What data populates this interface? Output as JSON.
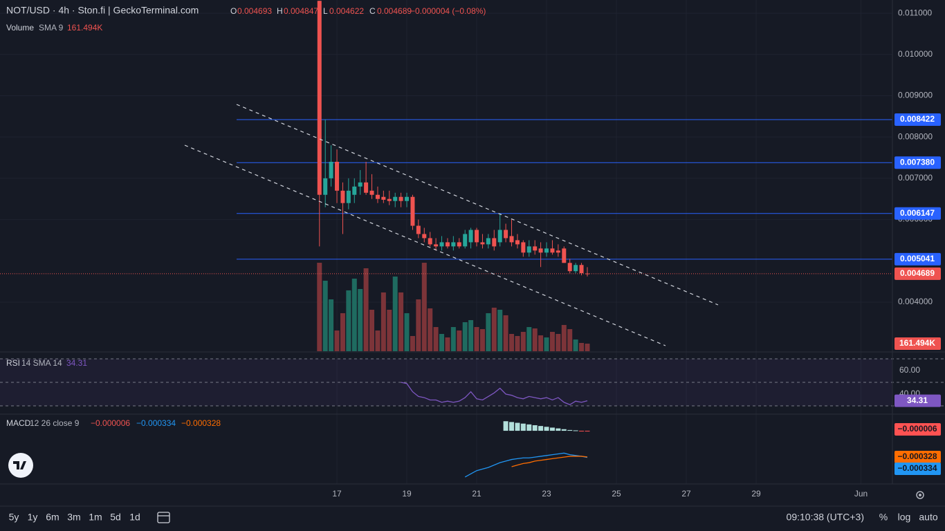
{
  "chart_data": {
    "type": "candlestick",
    "title": "NOT/USD · 4h · Ston.fi | GeckoTerminal.com",
    "ohlc_header": {
      "o_label": "O",
      "h_label": "H",
      "l_label": "L",
      "c_label": "C",
      "open": 0.004693,
      "high": 0.004847,
      "low": 0.004622,
      "close": 0.004689,
      "change": "−0.000004 (−0.08%)"
    },
    "colors": {
      "up": "#26a69a",
      "down": "#ef5350",
      "volume_up": "#1f6b60",
      "volume_down": "#7c3439",
      "level": "#2962ff",
      "rsi": "#7e57c2",
      "macd": "#2196f3",
      "signal": "#ff6d00",
      "hist_pos": "#b2dfdb",
      "hist_neg": "#ff5252"
    },
    "x": [
      16.5,
      16.667,
      16.833,
      17,
      17.167,
      17.333,
      17.5,
      17.667,
      17.833,
      18,
      18.167,
      18.333,
      18.5,
      18.667,
      18.833,
      19,
      19.167,
      19.333,
      19.5,
      19.667,
      19.833,
      20,
      20.167,
      20.333,
      20.5,
      20.667,
      20.833,
      21,
      21.167,
      21.333,
      21.5,
      21.667,
      21.833,
      22,
      22.167,
      22.333,
      22.5,
      22.667,
      22.833,
      23,
      23.167,
      23.333,
      23.5,
      23.667,
      23.833,
      24,
      24.167
    ],
    "open": [
      0.0113,
      0.0066,
      0.007,
      0.0074,
      0.0067,
      0.0064,
      0.0066,
      0.0068,
      0.0069,
      0.0067,
      0.0066,
      0.00655,
      0.0065,
      0.00645,
      0.00655,
      0.00645,
      0.00655,
      0.00585,
      0.00565,
      0.00555,
      0.0054,
      0.00535,
      0.00545,
      0.00535,
      0.00545,
      0.00535,
      0.00545,
      0.00575,
      0.00545,
      0.0054,
      0.00555,
      0.00545,
      0.00575,
      0.0056,
      0.0055,
      0.00545,
      0.0052,
      0.00535,
      0.0053,
      0.0052,
      0.0053,
      0.00525,
      0.0053,
      0.00495,
      0.00475,
      0.0049,
      0.004693
    ],
    "high": [
      0.0113,
      0.00843,
      0.0078,
      0.0077,
      0.0069,
      0.007,
      0.007,
      0.0072,
      0.0074,
      0.0071,
      0.0068,
      0.0067,
      0.0067,
      0.00665,
      0.00665,
      0.00665,
      0.0066,
      0.006,
      0.0058,
      0.0057,
      0.00555,
      0.0056,
      0.00555,
      0.0056,
      0.00555,
      0.00575,
      0.0058,
      0.0058,
      0.00565,
      0.00565,
      0.00575,
      0.00615,
      0.0059,
      0.006,
      0.00565,
      0.0055,
      0.0055,
      0.0055,
      0.00545,
      0.00545,
      0.0055,
      0.0054,
      0.00535,
      0.00505,
      0.00495,
      0.00495,
      0.004847
    ],
    "low": [
      0.00535,
      0.0063,
      0.0068,
      0.0064,
      0.00565,
      0.00625,
      0.0064,
      0.0066,
      0.0066,
      0.0065,
      0.0064,
      0.0064,
      0.00635,
      0.0063,
      0.0063,
      0.0063,
      0.00575,
      0.00555,
      0.00545,
      0.00535,
      0.00525,
      0.00525,
      0.0053,
      0.00525,
      0.0053,
      0.0053,
      0.0053,
      0.00535,
      0.0053,
      0.0053,
      0.00525,
      0.00535,
      0.00545,
      0.00535,
      0.0053,
      0.0051,
      0.0051,
      0.00515,
      0.00485,
      0.0051,
      0.00515,
      0.0051,
      0.00495,
      0.0047,
      0.0047,
      0.00465,
      0.004622
    ],
    "close": [
      0.0066,
      0.007,
      0.0074,
      0.0067,
      0.0064,
      0.0067,
      0.0068,
      0.0069,
      0.00665,
      0.0066,
      0.0065,
      0.00648,
      0.00645,
      0.00655,
      0.00645,
      0.00655,
      0.00585,
      0.00565,
      0.00555,
      0.0054,
      0.00535,
      0.00545,
      0.00535,
      0.00545,
      0.00535,
      0.00565,
      0.00575,
      0.00545,
      0.0054,
      0.00555,
      0.00535,
      0.00575,
      0.00555,
      0.00545,
      0.0054,
      0.0052,
      0.00535,
      0.00525,
      0.0052,
      0.0053,
      0.0052,
      0.0052,
      0.00495,
      0.00475,
      0.0049,
      0.0047,
      0.004689
    ],
    "volume": [
      1877000,
      1496000,
      1100000,
      440000,
      807000,
      1291000,
      1540000,
      1320000,
      1760000,
      880000,
      440000,
      1247000,
      880000,
      1584000,
      1247000,
      807000,
      323000,
      1100000,
      1877000,
      909000,
      513000,
      367000,
      293000,
      513000,
      440000,
      616000,
      660000,
      513000,
      469000,
      807000,
      924000,
      880000,
      763000,
      367000,
      323000,
      411000,
      513000,
      484000,
      337000,
      293000,
      411000,
      367000,
      557000,
      469000,
      249000,
      176000,
      161000
    ],
    "volume_name": "Volume",
    "volume_params": "SMA 9",
    "volume_sma": {
      "value": 161494,
      "label": "161.494K"
    },
    "volume_ylim": [
      0,
      7450000
    ],
    "xlim": [
      7.356,
      32.9
    ],
    "xticks": [
      17,
      19,
      21,
      23,
      25,
      27,
      29,
      {
        "value": 32,
        "label": "Jun"
      }
    ],
    "ylim": [
      0.00281,
      0.01132
    ],
    "yticks": [
      {
        "value": 0.011,
        "label": "0.011000"
      },
      {
        "value": 0.01,
        "label": "0.010000"
      },
      {
        "value": 0.009,
        "label": "0.009000"
      },
      {
        "value": 0.008,
        "label": "0.008000"
      },
      {
        "value": 0.007,
        "label": "0.007000"
      },
      {
        "value": 0.006,
        "label": "0.006000"
      },
      {
        "value": 0.004,
        "label": "0.004000"
      }
    ],
    "levels": [
      {
        "value": 0.008422,
        "label": "0.008422"
      },
      {
        "value": 0.00738,
        "label": "0.007380"
      },
      {
        "value": 0.006147,
        "label": "0.006147"
      },
      {
        "value": 0.005041,
        "label": "0.005041"
      }
    ],
    "grid": true,
    "rsi_name": "RSI",
    "rsi_params": "14 SMA 14",
    "rsi": [
      null,
      null,
      null,
      null,
      null,
      null,
      null,
      null,
      null,
      null,
      null,
      null,
      null,
      null,
      50,
      49,
      42,
      38,
      37,
      35,
      35,
      33,
      34,
      33,
      34,
      37,
      42,
      36,
      35,
      38,
      41,
      45,
      40,
      39,
      37,
      36,
      38,
      37,
      36,
      37,
      35,
      37,
      33,
      31,
      34,
      33,
      34.31
    ],
    "rsi_ylim": [
      24.1,
      70.6
    ],
    "rsi_yticks": [
      {
        "value": 60,
        "label": "60.00"
      },
      {
        "value": 40,
        "label": "40.00"
      }
    ],
    "rsi_band_lines": [
      70,
      50,
      30
    ],
    "macd_name": "MACD",
    "macd_params": "12 26 close 9",
    "macd_header": {
      "histogram": {
        "value": -6e-06,
        "label": "−0.000006"
      },
      "macd": {
        "value": -0.000334,
        "label": "−0.000334"
      },
      "signal": {
        "value": -0.000328,
        "label": "−0.000328"
      }
    },
    "macd": [
      null,
      null,
      null,
      null,
      null,
      null,
      null,
      null,
      null,
      null,
      null,
      null,
      null,
      null,
      null,
      null,
      null,
      null,
      null,
      null,
      null,
      null,
      null,
      null,
      null,
      -0.00058,
      -0.00054,
      -0.0005,
      -0.00048,
      -0.00046,
      -0.00043,
      -0.0004,
      -0.00038,
      -0.00036,
      -0.00035,
      -0.00034,
      -0.00034,
      -0.00033,
      -0.00032,
      -0.00031,
      -0.0003,
      -0.00029,
      -0.00028,
      -0.0003,
      -0.00031,
      -0.00032,
      -0.000334
    ],
    "signal": [
      null,
      null,
      null,
      null,
      null,
      null,
      null,
      null,
      null,
      null,
      null,
      null,
      null,
      null,
      null,
      null,
      null,
      null,
      null,
      null,
      null,
      null,
      null,
      null,
      null,
      null,
      null,
      null,
      null,
      null,
      null,
      null,
      null,
      -0.00045,
      -0.00043,
      -0.00041,
      -0.0004,
      -0.00038,
      -0.00037,
      -0.00036,
      -0.00035,
      -0.00034,
      -0.00033,
      -0.00032,
      -0.00032,
      -0.00032,
      -0.000328
    ],
    "histogram": [
      null,
      null,
      null,
      null,
      null,
      null,
      null,
      null,
      null,
      null,
      null,
      null,
      null,
      null,
      null,
      null,
      null,
      null,
      null,
      null,
      null,
      null,
      null,
      null,
      null,
      null,
      null,
      null,
      null,
      null,
      null,
      null,
      0.00012,
      0.00011,
      0.0001,
      9e-05,
      8e-05,
      7e-05,
      6e-05,
      5e-05,
      4e-05,
      3e-05,
      2e-05,
      1e-05,
      5e-06,
      -3e-06,
      -6e-06
    ],
    "macd_ylim": [
      -0.00065,
      0.0002
    ],
    "ranges": [
      "5y",
      "1y",
      "6m",
      "3m",
      "1m",
      "5d",
      "1d"
    ],
    "clock": "09:10:38 (UTC+3)",
    "scale_buttons": [
      "%",
      "log",
      "auto"
    ]
  }
}
